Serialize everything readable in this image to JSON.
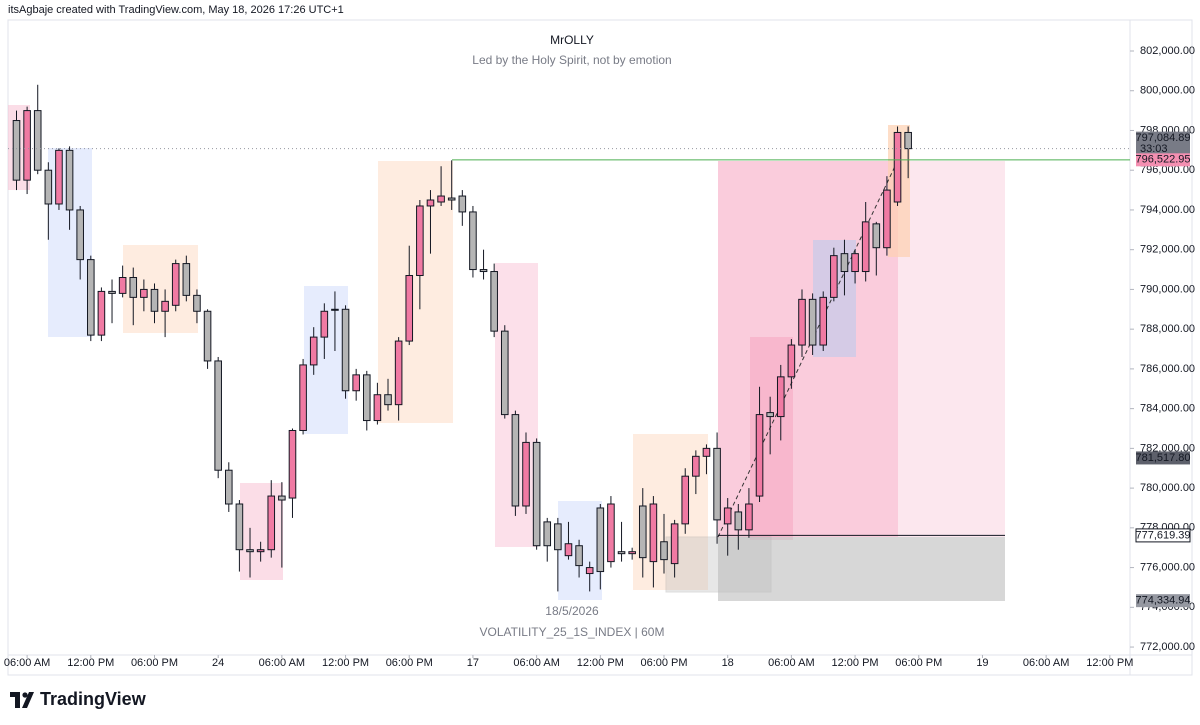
{
  "chart_data": {
    "type": "candlestick",
    "credit": "itsAgbaje created with TradingView.com, May 18, 2026 17:26 UTC+1",
    "title": "MrOLLY",
    "subtitle": "Led by the Holy Spirit, not by emotion",
    "watermark_date": "18/5/2026",
    "symbol": "VOLATILITY_25_1S_INDEX | 60M",
    "brand": "TradingView",
    "up_color": "#f07aa3",
    "down_color": "#b5b5b5",
    "candles": {
      "x": [
        5,
        6,
        7,
        8,
        9,
        10,
        11,
        12,
        13,
        14,
        15,
        16,
        17,
        18,
        19,
        20,
        21,
        22,
        23,
        24,
        25,
        26,
        27,
        28,
        29,
        30,
        31,
        32,
        33,
        34,
        35,
        36,
        37,
        38,
        39,
        40,
        41,
        42,
        43,
        44,
        45,
        46,
        47,
        48,
        49,
        50,
        51,
        52,
        53,
        54,
        55,
        56,
        57,
        58,
        59,
        60,
        61,
        62,
        63,
        64,
        65,
        66,
        67,
        68,
        69,
        70,
        71,
        72,
        73,
        74,
        75,
        76,
        77,
        78,
        79,
        80,
        81,
        82,
        83,
        84,
        85,
        86,
        87,
        88,
        89
      ],
      "open": [
        798500,
        795500,
        799000,
        796000,
        794300,
        797000,
        794000,
        791500,
        787700,
        789900,
        789800,
        790600,
        789600,
        790000,
        788900,
        789200,
        791300,
        789700,
        788900,
        786400,
        780900,
        779200,
        776900,
        776800,
        776900,
        779600,
        779500,
        782900,
        786200,
        787600,
        789000,
        789000,
        784900,
        785700,
        783400,
        784700,
        784200,
        787400,
        790700,
        794200,
        794400,
        794600,
        794700,
        793900,
        791000,
        790900,
        787900,
        783700,
        779100,
        782300,
        778300,
        778200,
        776600,
        777100,
        775700,
        779000,
        776300,
        776800,
        776700,
        779100,
        776300,
        777300,
        776200,
        778200,
        780600,
        781600,
        782000,
        778200,
        778800,
        777900,
        779600,
        783800,
        783600,
        785600,
        787200,
        789500,
        787200,
        789600,
        791800,
        790900,
        790900,
        793300,
        792100,
        794400,
        797900
      ],
      "high": [
        799000,
        799200,
        800300,
        796400,
        797100,
        797200,
        794200,
        791700,
        790100,
        790500,
        791200,
        791100,
        790500,
        790300,
        790000,
        791500,
        791700,
        790000,
        789000,
        786600,
        781300,
        779400,
        778000,
        777300,
        780400,
        780300,
        783000,
        786500,
        788100,
        789300,
        789900,
        789200,
        786000,
        785900,
        785300,
        785500,
        787600,
        792200,
        794500,
        795000,
        796200,
        796500,
        795000,
        794200,
        792000,
        791300,
        788200,
        783900,
        782800,
        782500,
        778500,
        778500,
        778300,
        777400,
        776300,
        779200,
        779600,
        778300,
        777000,
        780000,
        779600,
        778700,
        778400,
        781000,
        781900,
        782200,
        782800,
        779500,
        779200,
        780000,
        785100,
        784600,
        786200,
        787500,
        790000,
        789800,
        789900,
        792100,
        792500,
        792000,
        794400,
        793400,
        795700,
        798200,
        798200
      ],
      "low": [
        795000,
        794800,
        795800,
        792500,
        794000,
        793000,
        790500,
        787400,
        787400,
        788300,
        789600,
        788200,
        788900,
        788300,
        787600,
        788900,
        789400,
        788300,
        786000,
        780500,
        778800,
        775800,
        775500,
        776300,
        776500,
        776000,
        778500,
        782700,
        785700,
        786500,
        786900,
        784500,
        784400,
        782900,
        783200,
        783900,
        783400,
        787200,
        789000,
        791800,
        794200,
        794000,
        793200,
        790600,
        790500,
        787600,
        783500,
        778600,
        778700,
        776900,
        776300,
        774800,
        776400,
        775500,
        774800,
        774900,
        776000,
        776300,
        776400,
        775500,
        775000,
        775700,
        775500,
        777700,
        779700,
        780700,
        777200,
        776600,
        776900,
        777500,
        779300,
        781700,
        782400,
        785000,
        786600,
        786700,
        786900,
        789400,
        789700,
        790300,
        790400,
        790700,
        791700,
        794200,
        795600
      ],
      "close": [
        795500,
        799000,
        796000,
        794300,
        797000,
        794000,
        791500,
        787700,
        789900,
        789800,
        790600,
        789600,
        790000,
        788900,
        789400,
        791300,
        789700,
        788900,
        786400,
        780900,
        779200,
        776900,
        776800,
        776900,
        779600,
        779400,
        782900,
        786200,
        787600,
        788900,
        788950,
        784900,
        785700,
        783400,
        784700,
        784200,
        787400,
        790700,
        794200,
        794500,
        794700,
        794500,
        793900,
        791000,
        790900,
        787900,
        783700,
        779100,
        782300,
        777100,
        777100,
        776900,
        777200,
        776100,
        776000,
        775800,
        779200,
        776700,
        776800,
        776500,
        779200,
        776400,
        778200,
        780600,
        781600,
        782000,
        778400,
        779000,
        777900,
        779200,
        783700,
        783600,
        785600,
        787200,
        789500,
        787200,
        789600,
        791700,
        790900,
        791800,
        793400,
        792100,
        795000,
        797900,
        797084.89
      ]
    },
    "xlim": [
      4.2,
      109.9
    ],
    "xticks": [
      {
        "value": 6,
        "label": "06:00 AM"
      },
      {
        "value": 12,
        "label": "12:00 PM"
      },
      {
        "value": 18,
        "label": "06:00 PM"
      },
      24,
      {
        "value": 30,
        "label": "06:00 AM"
      },
      {
        "value": 36,
        "label": "12:00 PM"
      },
      {
        "value": 42,
        "label": "06:00 PM"
      },
      {
        "value": 48,
        "label": "17"
      },
      {
        "value": 54,
        "label": "06:00 AM"
      },
      {
        "value": 60,
        "label": "12:00 PM"
      },
      {
        "value": 66,
        "label": "06:00 PM"
      },
      {
        "value": 72,
        "label": "18"
      },
      {
        "value": 78,
        "label": "06:00 AM"
      },
      {
        "value": 84,
        "label": "12:00 PM"
      },
      {
        "value": 90,
        "label": "06:00 PM"
      },
      {
        "value": 96,
        "label": "19"
      },
      {
        "value": 102,
        "label": "06:00 AM"
      },
      {
        "value": 108,
        "label": "12:00 PM"
      }
    ],
    "ylim": [
      771600,
      803560
    ],
    "yticks": [
      {
        "value": 772000,
        "label": "772,000.00"
      },
      {
        "value": 774000,
        "label": "774,000.00"
      },
      {
        "value": 776000,
        "label": "776,000.00"
      },
      {
        "value": 778000,
        "label": "778,000.00"
      },
      {
        "value": 780000,
        "label": "780,000.00"
      },
      {
        "value": 782000,
        "label": "782,000.00"
      },
      {
        "value": 784000,
        "label": "784,000.00"
      },
      {
        "value": 786000,
        "label": "786,000.00"
      },
      {
        "value": 788000,
        "label": "788,000.00"
      },
      {
        "value": 790000,
        "label": "790,000.00"
      },
      {
        "value": 792000,
        "label": "792,000.00"
      },
      {
        "value": 794000,
        "label": "794,000.00"
      },
      {
        "value": 796000,
        "label": "796,000.00"
      },
      {
        "value": 798000,
        "label": "798,000.00"
      },
      {
        "value": 800000,
        "label": "800,000.00"
      },
      {
        "value": 802000,
        "label": "802,000.00"
      }
    ],
    "price_labels": [
      {
        "value": 797084.89,
        "label": "797,084.89",
        "countdown": "33:03",
        "color": "#787b86"
      },
      {
        "value": 796522.95,
        "label": "796,522.95",
        "color": "#f48fb1"
      },
      {
        "value": 781517.8,
        "label": "781,517.80",
        "color": "#5d606b"
      },
      {
        "value": 777619.39,
        "label": "777,619.39",
        "color": "#ffffff"
      },
      {
        "value": 774334.94,
        "label": "774,334.94",
        "color": "#9598a1"
      }
    ]
  }
}
